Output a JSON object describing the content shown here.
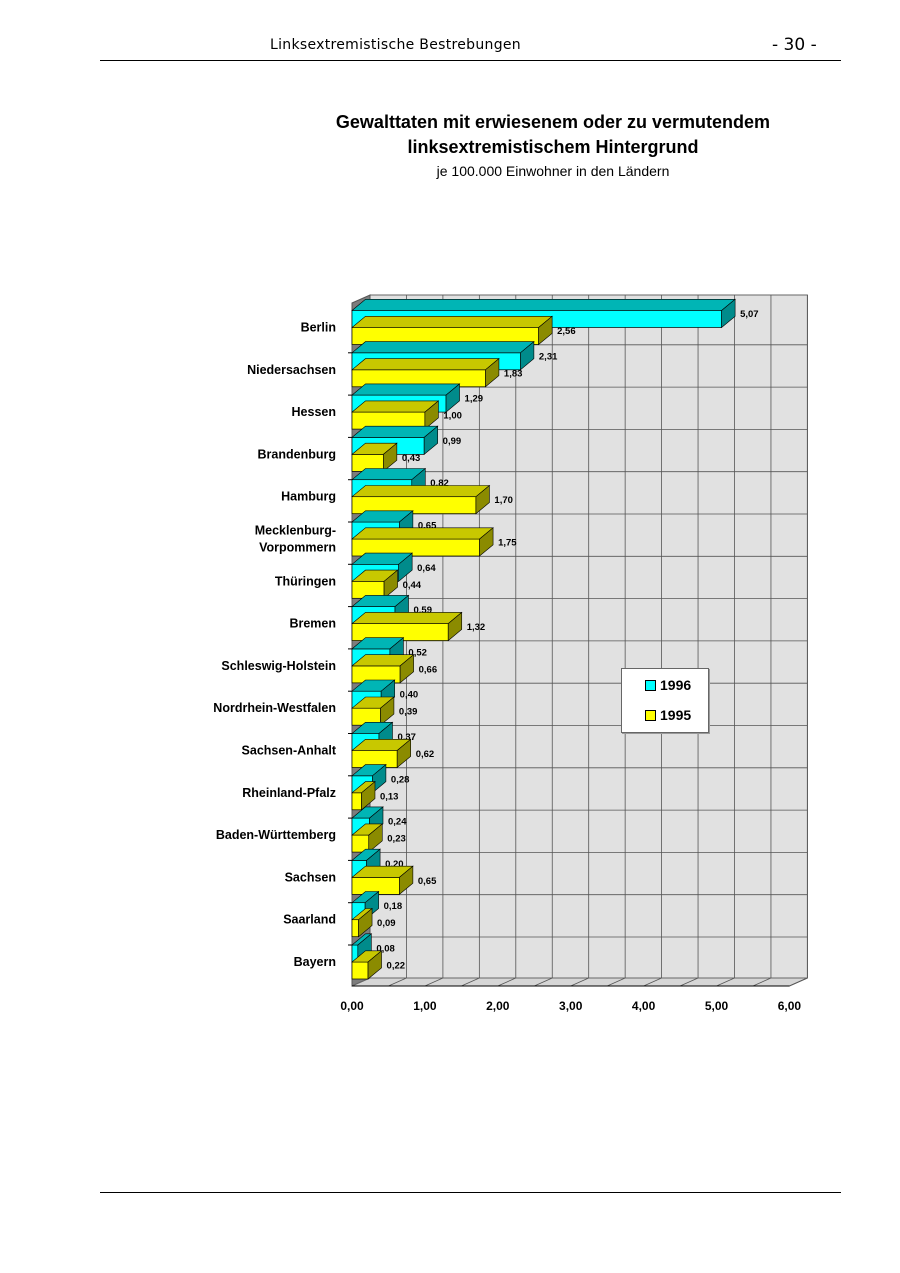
{
  "header": {
    "title": "Linksextremistische Bestrebungen",
    "page": "- 30 -"
  },
  "chart_data": {
    "type": "bar",
    "orientation": "horizontal",
    "title_line1": "Gewalttaten mit erwiesenem oder zu vermutendem",
    "title_line2": "linksextremistischem Hintergrund",
    "subtitle": "je 100.000 Einwohner in den Ländern",
    "categories": [
      "Berlin",
      "Niedersachsen",
      "Hessen",
      "Brandenburg",
      "Hamburg",
      "Mecklenburg-Vorpommern",
      "Thüringen",
      "Bremen",
      "Schleswig-Holstein",
      "Nordrhein-Westfalen",
      "Sachsen-Anhalt",
      "Rheinland-Pfalz",
      "Baden-Württemberg",
      "Sachsen",
      "Saarland",
      "Bayern"
    ],
    "category_lines": [
      [
        "Berlin"
      ],
      [
        "Niedersachsen"
      ],
      [
        "Hessen"
      ],
      [
        "Brandenburg"
      ],
      [
        "Hamburg"
      ],
      [
        "Mecklenburg-",
        "Vorpommern"
      ],
      [
        "Thüringen"
      ],
      [
        "Bremen"
      ],
      [
        "Schleswig-Holstein"
      ],
      [
        "Nordrhein-Westfalen"
      ],
      [
        "Sachsen-Anhalt"
      ],
      [
        "Rheinland-Pfalz"
      ],
      [
        "Baden-Württemberg"
      ],
      [
        "Sachsen"
      ],
      [
        "Saarland"
      ],
      [
        "Bayern"
      ]
    ],
    "series": [
      {
        "name": "1996",
        "color": "#00ffff",
        "side_color": "#008b8b",
        "top_color": "#00b5b5",
        "values": [
          5.07,
          2.31,
          1.29,
          0.99,
          0.82,
          0.65,
          0.64,
          0.59,
          0.52,
          0.4,
          0.37,
          0.28,
          0.24,
          0.2,
          0.18,
          0.08
        ],
        "labels": [
          "5,07",
          "2,31",
          "1,29",
          "0,99",
          "0,82",
          "0,65",
          "0,64",
          "0,59",
          "0,52",
          "0,40",
          "0,37",
          "0,28",
          "0,24",
          "0,20",
          "0,18",
          "0,08"
        ]
      },
      {
        "name": "1995",
        "color": "#ffff00",
        "side_color": "#8b8b00",
        "top_color": "#c8c800",
        "values": [
          2.56,
          1.83,
          1.0,
          0.43,
          1.7,
          1.75,
          0.44,
          1.32,
          0.66,
          0.39,
          0.62,
          0.13,
          0.23,
          0.65,
          0.09,
          0.22
        ],
        "labels": [
          "2,56",
          "1,83",
          "1,00",
          "0,43",
          "1,70",
          "1,75",
          "0,44",
          "1,32",
          "0,66",
          "0,39",
          "0,62",
          "0,13",
          "0,23",
          "0,65",
          "0,09",
          "0,22"
        ]
      }
    ],
    "xlim": [
      0,
      6
    ],
    "xticks": [
      0,
      1,
      2,
      3,
      4,
      5,
      6
    ],
    "xtick_labels": [
      "0,00",
      "1,00",
      "2,00",
      "3,00",
      "4,00",
      "5,00",
      "6,00"
    ],
    "grid": true,
    "legend_position": "right",
    "legend": [
      "1996",
      "1995"
    ]
  }
}
